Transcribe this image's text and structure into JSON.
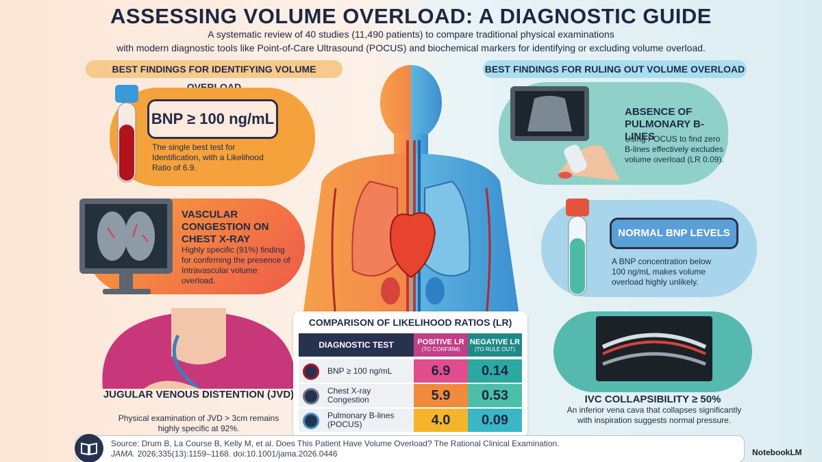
{
  "header": {
    "title": "ASSESSING VOLUME OVERLOAD: A DIAGNOSTIC GUIDE",
    "subtitle_lines": [
      "A systematic review of 40 studies (11,490 patients) to compare traditional physical examinations",
      "with modern diagnostic tools like Point-of-Care Ultrasound (POCUS) and biochemical markers for identifying or excluding volume overload."
    ]
  },
  "left": {
    "heading": "BEST FINDINGS FOR IDENTIFYING VOLUME OVERLOAD",
    "cards": [
      {
        "label": "BNP ≥ 100 ng/mL",
        "text": "The single best test for Identification, with a Likelihood Ratio of 6.9."
      },
      {
        "title": "VASCULAR CONGESTION ON CHEST X-RAY",
        "text": "Highly specific (91%) finding for confirming the presence of Intravascular volume overload."
      },
      {
        "title": "JUGULAR VENOUS DISTENTION (JVD)",
        "text": "Physical examination of JVD > 3cm remains highly specific at 92%."
      }
    ]
  },
  "right": {
    "heading": "BEST FINDINGS FOR RULING OUT VOLUME OVERLOAD",
    "cards": [
      {
        "title": "ABSENCE OF PULMONARY B-LINES",
        "text": "Using POCUS to find zero B-lines effectively excludes volume overload (LR 0.09)."
      },
      {
        "label": "NORMAL BNP LEVELS",
        "text": "A BNP concentration below 100 ng/mL makes volume overload highly unlikely."
      },
      {
        "title": "IVC COLLAPSIBILITY ≥ 50%",
        "text": "An inferior vena cava that collapses significantly with inspiration suggests normal pressure."
      }
    ]
  },
  "table": {
    "title": "COMPARISON OF LIKELIHOOD RATIOS (LR)",
    "columns": [
      {
        "label": "DIAGNOSTIC TEST"
      },
      {
        "label": "POSITIVE LR",
        "note": "(TO CONFIRM)"
      },
      {
        "label": "NEGATIVE LR",
        "note": "(TO RULE OUT)"
      }
    ],
    "rows": [
      [
        "BNP ≥ 100 ng/mL",
        "6.9",
        "0.14"
      ],
      [
        "Chest X-ray Congestion",
        "5.9",
        "0.53"
      ],
      [
        "Pulmonary B-lines (POCUS)",
        "4.0",
        "0.09"
      ]
    ]
  },
  "footer": {
    "source": "Source: Drum B, La Course B, Kelly M, et al. Does This Patient Have Volume Overload? The Rational Clinical Examination.",
    "journal": "JAMA.",
    "citation": "2026;335(13):1159–1168. doi:10.1001/jama.2026.0446",
    "brand": "NotebookLM"
  }
}
